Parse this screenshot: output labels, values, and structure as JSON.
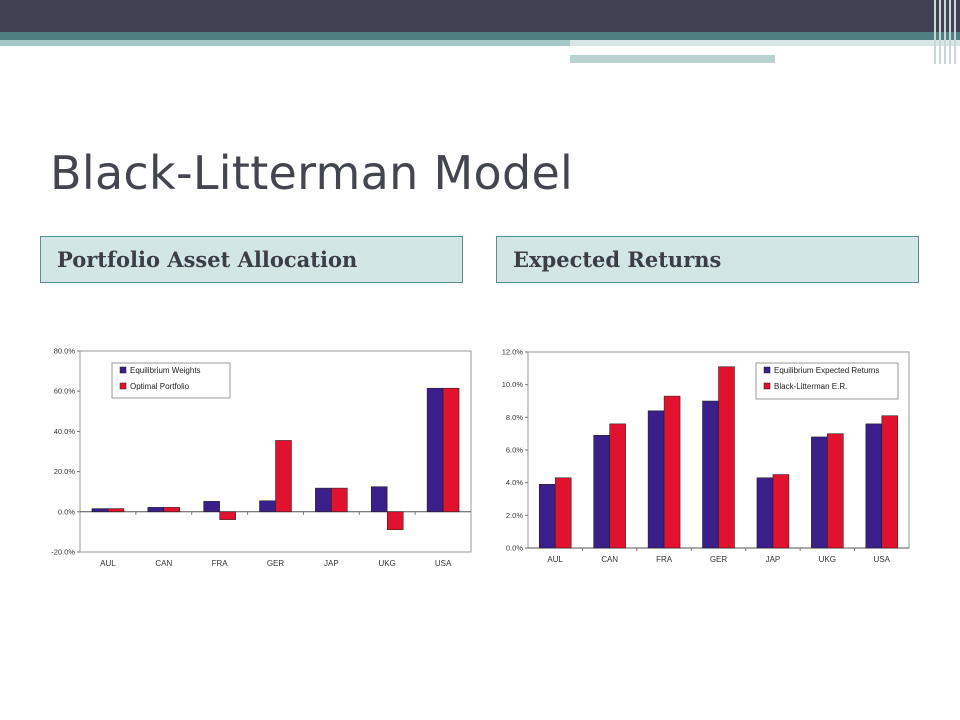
{
  "slide": {
    "title": "Black-Litterman Model",
    "left_header": "Portfolio Asset Allocation",
    "right_header": "Expected Returns"
  },
  "colors": {
    "series1": "#3a1f8a",
    "series2": "#e0122e",
    "header_fill": "#d2e6e6",
    "header_border": "#5c8f8f",
    "topbar": "#3f4152"
  },
  "chart_data": [
    {
      "type": "bar",
      "categories": [
        "AUL",
        "CAN",
        "FRA",
        "GER",
        "JAP",
        "UKG",
        "USA"
      ],
      "series": [
        {
          "name": "Equilibrium Weights",
          "values": [
            1.6,
            2.2,
            5.2,
            5.5,
            11.8,
            12.5,
            61.5
          ]
        },
        {
          "name": "Optimal Portfolio",
          "values": [
            1.6,
            2.2,
            -3.9,
            35.5,
            11.8,
            -8.9,
            61.5
          ]
        }
      ],
      "yticks": [
        "80.0%",
        "60.0%",
        "40.0%",
        "20.0%",
        "0.0%",
        "-20.0%"
      ],
      "ylim": [
        -20,
        80
      ],
      "legend": "top-left",
      "grid": false
    },
    {
      "type": "bar",
      "categories": [
        "AUL",
        "CAN",
        "FRA",
        "GER",
        "JAP",
        "UKG",
        "USA"
      ],
      "series": [
        {
          "name": "Equilibrium Expected Returns",
          "values": [
            3.9,
            6.9,
            8.4,
            9.0,
            4.3,
            6.8,
            7.6
          ]
        },
        {
          "name": "Black-Litterman E.R.",
          "values": [
            4.3,
            7.6,
            9.3,
            11.1,
            4.5,
            7.0,
            8.1
          ]
        }
      ],
      "yticks": [
        "12.0%",
        "10.0%",
        "8.0%",
        "6.0%",
        "4.0%",
        "2.0%",
        "0.0%"
      ],
      "ylim": [
        0,
        12
      ],
      "legend": "top-right",
      "grid": false
    }
  ]
}
